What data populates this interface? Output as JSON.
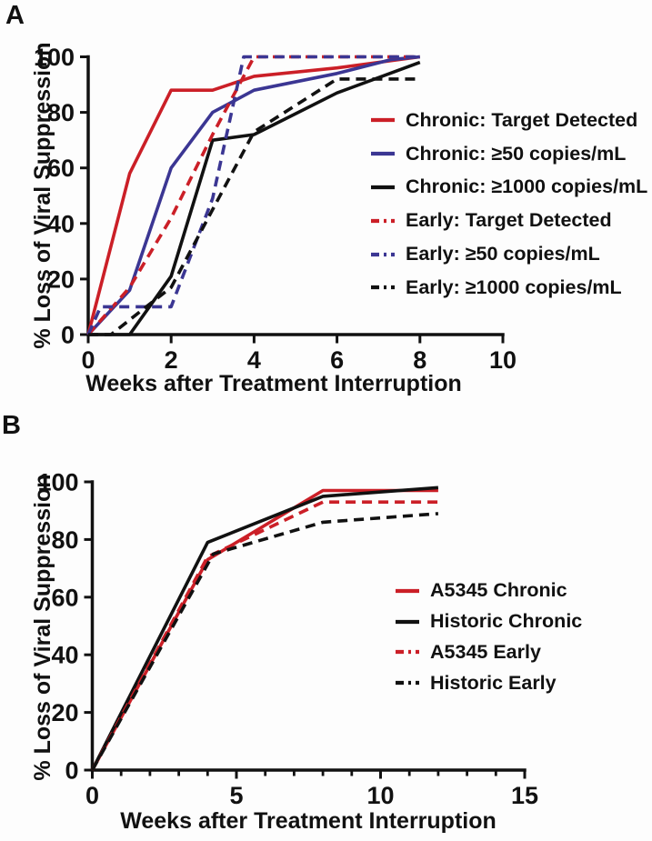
{
  "figure": {
    "background": "#fdfdfd",
    "axis_color": "#111111",
    "text_color": "#111111"
  },
  "chart_data": [
    {
      "type": "line",
      "panel_label": "A",
      "xlabel": "Weeks after Treatment Interruption",
      "ylabel": "% Loss of Viral Suppression",
      "xlim": [
        0,
        10
      ],
      "ylim": [
        0,
        100
      ],
      "xticks": [
        0,
        2,
        4,
        6,
        8,
        10
      ],
      "yticks": [
        0,
        20,
        40,
        60,
        80,
        100
      ],
      "x_minor_tick_step": null,
      "grid": false,
      "legend_position": "right-center",
      "series": [
        {
          "name": "Chronic: Target Detected",
          "color": "#cb1f27",
          "style": "solid",
          "points": [
            [
              0,
              0
            ],
            [
              1,
              58
            ],
            [
              2,
              88
            ],
            [
              3,
              88
            ],
            [
              4,
              93
            ],
            [
              6,
              96
            ],
            [
              8,
              100
            ]
          ]
        },
        {
          "name": "Chronic: ≥50 copies/mL",
          "color": "#3b3693",
          "style": "solid",
          "points": [
            [
              0,
              0
            ],
            [
              1,
              16
            ],
            [
              2,
              60
            ],
            [
              3,
              80
            ],
            [
              4,
              88
            ],
            [
              6,
              94
            ],
            [
              7.3,
              99
            ],
            [
              8,
              100
            ]
          ]
        },
        {
          "name": "Chronic: ≥1000 copies/mL",
          "color": "#111111",
          "style": "solid",
          "points": [
            [
              0,
              0
            ],
            [
              1,
              0
            ],
            [
              2,
              21
            ],
            [
              3,
              70
            ],
            [
              4,
              72
            ],
            [
              6,
              87
            ],
            [
              8,
              98
            ]
          ]
        },
        {
          "name": "Early: Target Detected",
          "color": "#cb1f27",
          "style": "dashed",
          "points": [
            [
              0,
              0
            ],
            [
              1,
              17
            ],
            [
              2,
              42
            ],
            [
              3,
              72
            ],
            [
              4,
              100
            ],
            [
              8,
              100
            ]
          ]
        },
        {
          "name": "Early: ≥50 copies/mL",
          "color": "#3b3693",
          "style": "dashed",
          "points": [
            [
              0,
              0
            ],
            [
              0.3,
              10
            ],
            [
              2,
              10
            ],
            [
              3,
              49
            ],
            [
              3.75,
              100
            ],
            [
              8,
              100
            ]
          ]
        },
        {
          "name": "Early: ≥1000 copies/mL",
          "color": "#111111",
          "style": "dashed",
          "points": [
            [
              0,
              0
            ],
            [
              0.55,
              0
            ],
            [
              1.4,
              10
            ],
            [
              2,
              17
            ],
            [
              3,
              45
            ],
            [
              4,
              73
            ],
            [
              6,
              92
            ],
            [
              8,
              92
            ]
          ]
        }
      ]
    },
    {
      "type": "line",
      "panel_label": "B",
      "xlabel": "Weeks after Treatment Interruption",
      "ylabel": "% Loss of Viral Suppression",
      "xlim": [
        0,
        15
      ],
      "ylim": [
        0,
        100
      ],
      "xticks": [
        0,
        5,
        10,
        15
      ],
      "yticks": [
        0,
        20,
        40,
        60,
        80,
        100
      ],
      "x_minor_tick_step": 1,
      "grid": false,
      "legend_position": "right-center",
      "series": [
        {
          "name": "A5345 Chronic",
          "color": "#cb1f27",
          "style": "solid",
          "points": [
            [
              0,
              0
            ],
            [
              4,
              73
            ],
            [
              8,
              97
            ],
            [
              12,
              97
            ]
          ]
        },
        {
          "name": "Historic Chronic",
          "color": "#111111",
          "style": "solid",
          "points": [
            [
              0,
              0
            ],
            [
              4,
              79
            ],
            [
              8,
              95
            ],
            [
              12,
              98
            ]
          ]
        },
        {
          "name": "A5345 Early",
          "color": "#cb1f27",
          "style": "dashed",
          "points": [
            [
              0,
              0
            ],
            [
              4,
              74
            ],
            [
              8,
              93
            ],
            [
              12,
              93
            ]
          ]
        },
        {
          "name": "Historic Early",
          "color": "#111111",
          "style": "dashed",
          "points": [
            [
              0,
              0
            ],
            [
              4.2,
              75
            ],
            [
              8,
              86
            ],
            [
              12,
              89
            ]
          ]
        }
      ]
    }
  ]
}
